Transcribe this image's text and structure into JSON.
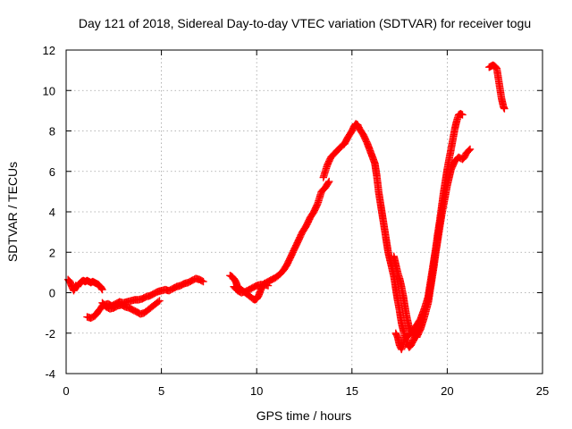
{
  "chart_data": {
    "type": "scatter",
    "title": "Day 121 of 2018, Sidereal Day-to-day VTEC variation (SDTVAR) for receiver togu",
    "xlabel": "GPS time / hours",
    "ylabel": "SDTVAR / TECUs",
    "xlim": [
      0,
      25
    ],
    "ylim": [
      -4,
      12
    ],
    "xticks": [
      0,
      5,
      10,
      15,
      20,
      25
    ],
    "yticks": [
      -4,
      -2,
      0,
      2,
      4,
      6,
      8,
      10,
      12
    ],
    "grid": true,
    "marker": "+",
    "color": "#ff0000",
    "segments": [
      {
        "name": "seg-a",
        "points": [
          [
            0.1,
            0.65
          ],
          [
            0.2,
            0.55
          ],
          [
            0.3,
            0.3
          ],
          [
            0.4,
            0.1
          ],
          [
            0.5,
            0.35
          ],
          [
            0.6,
            0.3
          ],
          [
            0.7,
            0.45
          ],
          [
            0.8,
            0.55
          ],
          [
            0.9,
            0.6
          ],
          [
            1.0,
            0.55
          ],
          [
            1.1,
            0.6
          ],
          [
            1.2,
            0.55
          ],
          [
            1.3,
            0.5
          ],
          [
            1.4,
            0.55
          ],
          [
            1.5,
            0.5
          ],
          [
            1.6,
            0.45
          ],
          [
            1.7,
            0.4
          ],
          [
            1.8,
            0.3
          ],
          [
            1.9,
            0.15
          ]
        ]
      },
      {
        "name": "seg-b",
        "points": [
          [
            1.1,
            -1.2
          ],
          [
            1.3,
            -1.25
          ],
          [
            1.5,
            -1.15
          ],
          [
            1.6,
            -1.05
          ],
          [
            1.7,
            -0.9
          ],
          [
            1.8,
            -0.8
          ],
          [
            1.9,
            -0.65
          ],
          [
            2.0,
            -0.6
          ],
          [
            2.2,
            -0.55
          ],
          [
            2.4,
            -0.65
          ],
          [
            2.6,
            -0.55
          ],
          [
            2.8,
            -0.45
          ],
          [
            3.0,
            -0.5
          ],
          [
            3.2,
            -0.45
          ],
          [
            3.4,
            -0.4
          ],
          [
            3.6,
            -0.35
          ],
          [
            3.8,
            -0.35
          ],
          [
            4.0,
            -0.3
          ],
          [
            4.2,
            -0.2
          ],
          [
            4.4,
            -0.15
          ],
          [
            4.6,
            -0.05
          ],
          [
            4.8,
            0.05
          ],
          [
            5.0,
            0.1
          ],
          [
            5.2,
            0.15
          ],
          [
            5.4,
            0.1
          ],
          [
            5.6,
            0.2
          ],
          [
            5.8,
            0.3
          ],
          [
            6.0,
            0.35
          ],
          [
            6.2,
            0.45
          ],
          [
            6.4,
            0.5
          ],
          [
            6.6,
            0.6
          ],
          [
            6.8,
            0.7
          ],
          [
            7.0,
            0.65
          ],
          [
            7.2,
            0.55
          ]
        ]
      },
      {
        "name": "seg-c",
        "points": [
          [
            1.9,
            -0.5
          ],
          [
            2.1,
            -0.7
          ],
          [
            2.3,
            -0.8
          ],
          [
            2.5,
            -0.75
          ],
          [
            2.7,
            -0.65
          ],
          [
            2.9,
            -0.6
          ],
          [
            3.1,
            -0.7
          ],
          [
            3.3,
            -0.75
          ],
          [
            3.5,
            -0.85
          ],
          [
            3.7,
            -0.95
          ],
          [
            3.9,
            -1.05
          ],
          [
            4.1,
            -1.0
          ],
          [
            4.3,
            -0.85
          ],
          [
            4.5,
            -0.7
          ],
          [
            4.7,
            -0.55
          ],
          [
            4.9,
            -0.4
          ]
        ]
      },
      {
        "name": "seg-d",
        "points": [
          [
            8.6,
            0.85
          ],
          [
            8.7,
            0.8
          ],
          [
            8.8,
            0.7
          ],
          [
            8.9,
            0.55
          ],
          [
            9.0,
            0.3
          ],
          [
            9.2,
            0.15
          ],
          [
            9.4,
            0.0
          ],
          [
            9.6,
            -0.15
          ],
          [
            9.8,
            -0.3
          ],
          [
            9.9,
            -0.35
          ],
          [
            10.0,
            -0.3
          ],
          [
            10.1,
            -0.15
          ],
          [
            10.2,
            0.1
          ],
          [
            10.3,
            0.3
          ],
          [
            10.4,
            0.45
          ],
          [
            10.6,
            0.55
          ],
          [
            10.8,
            0.65
          ],
          [
            11.0,
            0.75
          ],
          [
            11.2,
            0.9
          ],
          [
            11.4,
            1.1
          ],
          [
            11.6,
            1.4
          ],
          [
            11.8,
            1.8
          ],
          [
            12.0,
            2.2
          ],
          [
            12.2,
            2.6
          ],
          [
            12.4,
            3.0
          ],
          [
            12.6,
            3.3
          ],
          [
            12.8,
            3.7
          ],
          [
            13.0,
            4.0
          ],
          [
            13.2,
            4.4
          ],
          [
            13.3,
            4.7
          ],
          [
            13.4,
            5.0
          ],
          [
            13.6,
            5.2
          ],
          [
            13.8,
            5.5
          ]
        ]
      },
      {
        "name": "seg-e",
        "points": [
          [
            8.8,
            0.3
          ],
          [
            9.0,
            0.1
          ],
          [
            9.2,
            0.0
          ],
          [
            9.4,
            0.05
          ],
          [
            9.6,
            0.15
          ],
          [
            9.8,
            0.25
          ],
          [
            10.0,
            0.35
          ],
          [
            10.2,
            0.4
          ],
          [
            10.4,
            0.4
          ],
          [
            10.6,
            0.35
          ]
        ]
      },
      {
        "name": "seg-f",
        "points": [
          [
            13.5,
            5.7
          ],
          [
            13.6,
            6.0
          ],
          [
            13.7,
            6.3
          ],
          [
            13.8,
            6.5
          ],
          [
            13.9,
            6.7
          ],
          [
            14.0,
            6.8
          ],
          [
            14.2,
            7.0
          ],
          [
            14.4,
            7.2
          ],
          [
            14.6,
            7.35
          ],
          [
            14.8,
            7.7
          ],
          [
            15.0,
            8.0
          ],
          [
            15.1,
            8.2
          ],
          [
            15.2,
            8.35
          ],
          [
            15.3,
            8.3
          ],
          [
            15.4,
            8.1
          ],
          [
            15.6,
            7.8
          ],
          [
            15.8,
            7.4
          ],
          [
            16.0,
            6.9
          ],
          [
            16.2,
            6.4
          ],
          [
            16.3,
            5.8
          ],
          [
            16.4,
            5.0
          ],
          [
            16.5,
            4.4
          ],
          [
            16.6,
            3.8
          ],
          [
            16.7,
            3.2
          ],
          [
            16.8,
            2.6
          ],
          [
            16.9,
            2.0
          ],
          [
            17.0,
            1.6
          ],
          [
            17.1,
            1.2
          ],
          [
            17.2,
            0.8
          ],
          [
            17.3,
            0.2
          ],
          [
            17.4,
            -0.4
          ],
          [
            17.5,
            -0.9
          ],
          [
            17.6,
            -1.5
          ],
          [
            17.7,
            -1.9
          ],
          [
            17.8,
            -2.2
          ],
          [
            17.9,
            -2.5
          ],
          [
            18.0,
            -2.7
          ],
          [
            18.1,
            -2.6
          ],
          [
            18.2,
            -2.4
          ],
          [
            18.3,
            -2.2
          ],
          [
            18.4,
            -2.0
          ],
          [
            18.5,
            -1.8
          ]
        ]
      },
      {
        "name": "seg-g",
        "points": [
          [
            17.2,
            1.8
          ],
          [
            17.3,
            1.4
          ],
          [
            17.4,
            1.0
          ],
          [
            17.5,
            0.7
          ],
          [
            17.6,
            0.3
          ],
          [
            17.7,
            -0.2
          ],
          [
            17.8,
            -0.8
          ],
          [
            17.9,
            -1.3
          ],
          [
            18.0,
            -1.7
          ],
          [
            18.1,
            -1.9
          ],
          [
            18.2,
            -2.0
          ],
          [
            18.3,
            -1.9
          ],
          [
            18.4,
            -1.8
          ],
          [
            18.5,
            -1.7
          ],
          [
            18.6,
            -1.6
          ]
        ]
      },
      {
        "name": "seg-h",
        "points": [
          [
            17.3,
            -2.0
          ],
          [
            17.4,
            -2.2
          ],
          [
            17.5,
            -2.6
          ],
          [
            17.6,
            -2.8
          ],
          [
            17.7,
            -2.5
          ],
          [
            17.8,
            -2.2
          ],
          [
            18.0,
            -2.1
          ],
          [
            18.2,
            -1.9
          ],
          [
            18.4,
            -1.6
          ],
          [
            18.6,
            -1.3
          ],
          [
            18.8,
            -0.8
          ],
          [
            19.0,
            -0.2
          ],
          [
            19.1,
            0.4
          ],
          [
            19.2,
            1.0
          ],
          [
            19.3,
            1.6
          ],
          [
            19.4,
            2.2
          ],
          [
            19.5,
            2.9
          ],
          [
            19.6,
            3.5
          ],
          [
            19.7,
            4.2
          ],
          [
            19.8,
            4.9
          ],
          [
            19.9,
            5.5
          ],
          [
            20.0,
            6.1
          ],
          [
            20.1,
            6.6
          ],
          [
            20.2,
            7.1
          ],
          [
            20.3,
            7.6
          ],
          [
            20.4,
            8.1
          ],
          [
            20.5,
            8.5
          ],
          [
            20.6,
            8.8
          ],
          [
            20.7,
            8.85
          ],
          [
            20.8,
            8.8
          ]
        ]
      },
      {
        "name": "seg-i",
        "points": [
          [
            18.4,
            -2.2
          ],
          [
            18.6,
            -1.8
          ],
          [
            18.8,
            -1.2
          ],
          [
            19.0,
            -0.5
          ],
          [
            19.1,
            0.1
          ],
          [
            19.2,
            0.7
          ],
          [
            19.3,
            1.3
          ],
          [
            19.4,
            2.0
          ],
          [
            19.5,
            2.6
          ],
          [
            19.6,
            3.2
          ],
          [
            19.7,
            3.8
          ],
          [
            19.8,
            4.3
          ],
          [
            19.9,
            4.8
          ],
          [
            20.0,
            5.3
          ],
          [
            20.1,
            5.7
          ],
          [
            20.2,
            6.1
          ],
          [
            20.3,
            6.3
          ],
          [
            20.4,
            6.5
          ],
          [
            20.5,
            6.6
          ],
          [
            20.6,
            6.7
          ],
          [
            20.8,
            6.6
          ],
          [
            20.9,
            6.7
          ],
          [
            21.0,
            6.9
          ],
          [
            21.1,
            7.0
          ],
          [
            21.2,
            7.1
          ]
        ]
      },
      {
        "name": "seg-j",
        "points": [
          [
            22.2,
            11.15
          ],
          [
            22.3,
            11.2
          ],
          [
            22.4,
            11.25
          ],
          [
            22.5,
            11.2
          ],
          [
            22.6,
            11.1
          ],
          [
            22.65,
            10.8
          ],
          [
            22.7,
            10.5
          ],
          [
            22.75,
            10.2
          ],
          [
            22.8,
            9.9
          ],
          [
            22.85,
            9.6
          ],
          [
            22.9,
            9.4
          ],
          [
            22.95,
            9.2
          ],
          [
            23.0,
            9.1
          ]
        ]
      }
    ]
  }
}
